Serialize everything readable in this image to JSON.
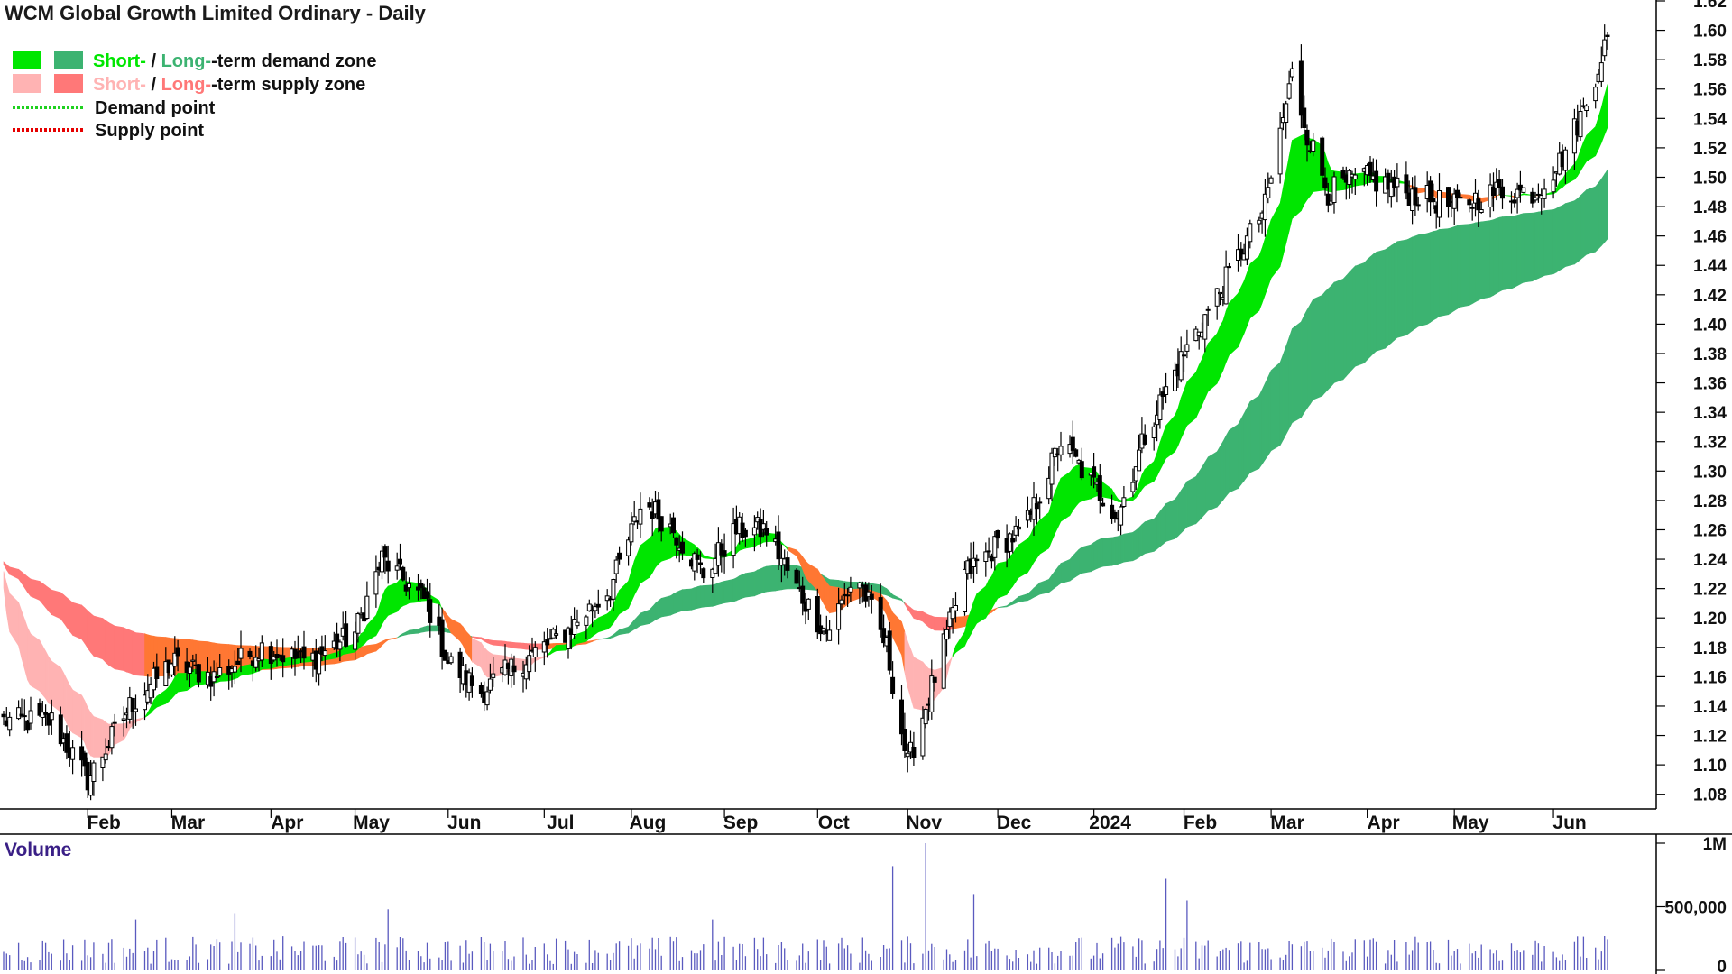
{
  "title": "WCM Global Growth Limited Ordinary - Daily",
  "legend": {
    "zone_short": "Short-",
    "zone_sep": " / ",
    "zone_long": "Long-",
    "demand_rest": "-term demand zone",
    "supply_rest": "-term supply zone",
    "demand_point": "Demand point",
    "supply_point": "Supply point"
  },
  "colors": {
    "short_demand": "#00e600",
    "long_demand": "#3cb371",
    "short_supply": "#ffb3b3",
    "long_supply": "#ff7878",
    "overlap": "#ff7733",
    "demand_point": "#1fd11f",
    "supply_point": "#e60000",
    "volume_bar": "#5a5abf",
    "candle": "#000000"
  },
  "volume_panel": {
    "title": "Volume",
    "ticks": [
      "1M",
      "500,000",
      "0"
    ]
  },
  "chart_data": {
    "type": "candlestick",
    "price_axis": {
      "ylim": [
        1.07,
        1.62
      ],
      "ticks": [
        "1.62",
        "1.60",
        "1.58",
        "1.56",
        "1.54",
        "1.52",
        "1.50",
        "1.48",
        "1.46",
        "1.44",
        "1.42",
        "1.40",
        "1.38",
        "1.36",
        "1.34",
        "1.32",
        "1.30",
        "1.28",
        "1.26",
        "1.24",
        "1.22",
        "1.20",
        "1.18",
        "1.16",
        "1.14",
        "1.12",
        "1.10",
        "1.08"
      ]
    },
    "x_axis": {
      "labels": [
        "Feb",
        "Mar",
        "Apr",
        "May",
        "Jun",
        "Jul",
        "Aug",
        "Sep",
        "Oct",
        "Nov",
        "Dec",
        "2024",
        "Feb",
        "Mar",
        "Apr",
        "May",
        "Jun"
      ]
    },
    "close_path": [
      [
        "2023-01-20",
        1.13
      ],
      [
        "2023-02-01",
        1.09
      ],
      [
        "2023-02-15",
        1.14
      ],
      [
        "2023-03-01",
        1.17
      ],
      [
        "2023-03-15",
        1.16
      ],
      [
        "2023-03-31",
        1.18
      ],
      [
        "2023-04-15",
        1.17
      ],
      [
        "2023-05-01",
        1.19
      ],
      [
        "2023-05-10",
        1.24
      ],
      [
        "2023-05-25",
        1.21
      ],
      [
        "2023-06-01",
        1.17
      ],
      [
        "2023-06-12",
        1.15
      ],
      [
        "2023-06-25",
        1.17
      ],
      [
        "2023-07-10",
        1.19
      ],
      [
        "2023-07-25",
        1.22
      ],
      [
        "2023-08-05",
        1.28
      ],
      [
        "2023-08-15",
        1.26
      ],
      [
        "2023-08-25",
        1.23
      ],
      [
        "2023-09-05",
        1.26
      ],
      [
        "2023-09-15",
        1.26
      ],
      [
        "2023-09-25",
        1.22
      ],
      [
        "2023-10-05",
        1.19
      ],
      [
        "2023-10-15",
        1.23
      ],
      [
        "2023-10-25",
        1.18
      ],
      [
        "2023-11-01",
        1.1
      ],
      [
        "2023-11-10",
        1.16
      ],
      [
        "2023-11-20",
        1.23
      ],
      [
        "2023-12-01",
        1.25
      ],
      [
        "2023-12-10",
        1.26
      ],
      [
        "2023-12-22",
        1.32
      ],
      [
        "2024-01-02",
        1.29
      ],
      [
        "2024-01-10",
        1.27
      ],
      [
        "2024-01-20",
        1.33
      ],
      [
        "2024-02-01",
        1.38
      ],
      [
        "2024-02-15",
        1.43
      ],
      [
        "2024-02-28",
        1.48
      ],
      [
        "2024-03-08",
        1.57
      ],
      [
        "2024-03-13",
        1.53
      ],
      [
        "2024-03-20",
        1.49
      ],
      [
        "2024-04-01",
        1.5
      ],
      [
        "2024-04-15",
        1.49
      ],
      [
        "2024-05-01",
        1.48
      ],
      [
        "2024-05-15",
        1.49
      ],
      [
        "2024-05-28",
        1.49
      ],
      [
        "2024-06-05",
        1.51
      ],
      [
        "2024-06-14",
        1.55
      ],
      [
        "2024-06-20",
        1.59
      ]
    ],
    "volume": {
      "ylim": [
        0,
        1000000
      ],
      "peak": 1000000
    }
  }
}
